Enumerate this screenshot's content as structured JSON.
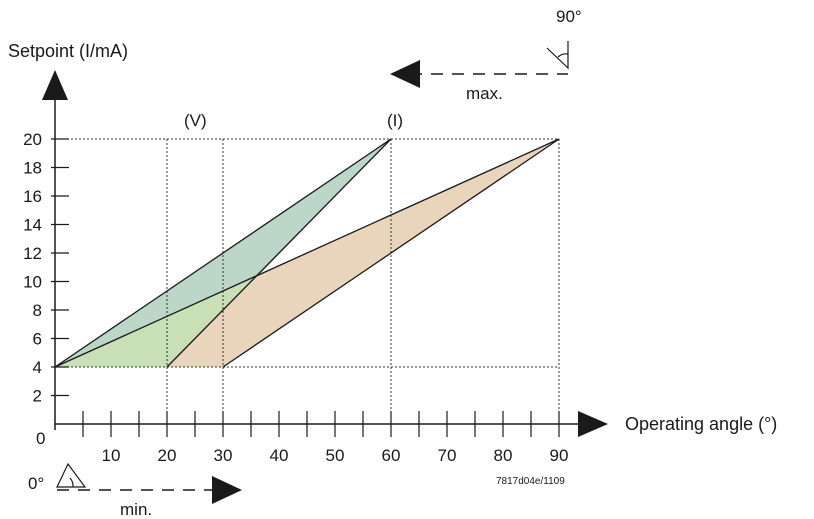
{
  "chart_data": {
    "type": "area",
    "ylabel": "Setpoint (I/mA)",
    "xlabel": "Operating angle (°)",
    "origin_label": "0",
    "y_ticks": [
      2,
      4,
      6,
      8,
      10,
      12,
      14,
      16,
      18,
      20
    ],
    "x_ticks": [
      10,
      20,
      30,
      40,
      50,
      60,
      70,
      80,
      90
    ],
    "xlim": [
      0,
      90
    ],
    "ylim": [
      0,
      20
    ],
    "reference_lines": {
      "horizontal": [
        4,
        20
      ],
      "vertical": [
        20,
        30,
        60,
        90
      ]
    },
    "regions": [
      {
        "color": "#e8d5bc",
        "points": [
          [
            0,
            4
          ],
          [
            30,
            4
          ],
          [
            90,
            20
          ],
          [
            36.8,
            10.6
          ]
        ]
      },
      {
        "color": "#bcd7c8",
        "points": [
          [
            0,
            4
          ],
          [
            36.8,
            10.6
          ],
          [
            60,
            20
          ]
        ]
      },
      {
        "color": "#c9dfb6",
        "points": [
          [
            0,
            4
          ],
          [
            20,
            4
          ],
          [
            36.8,
            10.6
          ]
        ]
      }
    ],
    "lines": [
      [
        [
          0,
          4
        ],
        [
          60,
          20
        ]
      ],
      [
        [
          0,
          4
        ],
        [
          90,
          20
        ]
      ],
      [
        [
          20,
          4
        ],
        [
          60,
          20
        ]
      ],
      [
        [
          30,
          4
        ],
        [
          90,
          20
        ]
      ]
    ],
    "annotations": {
      "v_label": "(V)",
      "i_label": "(I)",
      "max_label": "max.",
      "min_label": "min.",
      "deg90_label": "90°",
      "deg0_label": "0°",
      "code": "7817d04e/1109"
    }
  }
}
